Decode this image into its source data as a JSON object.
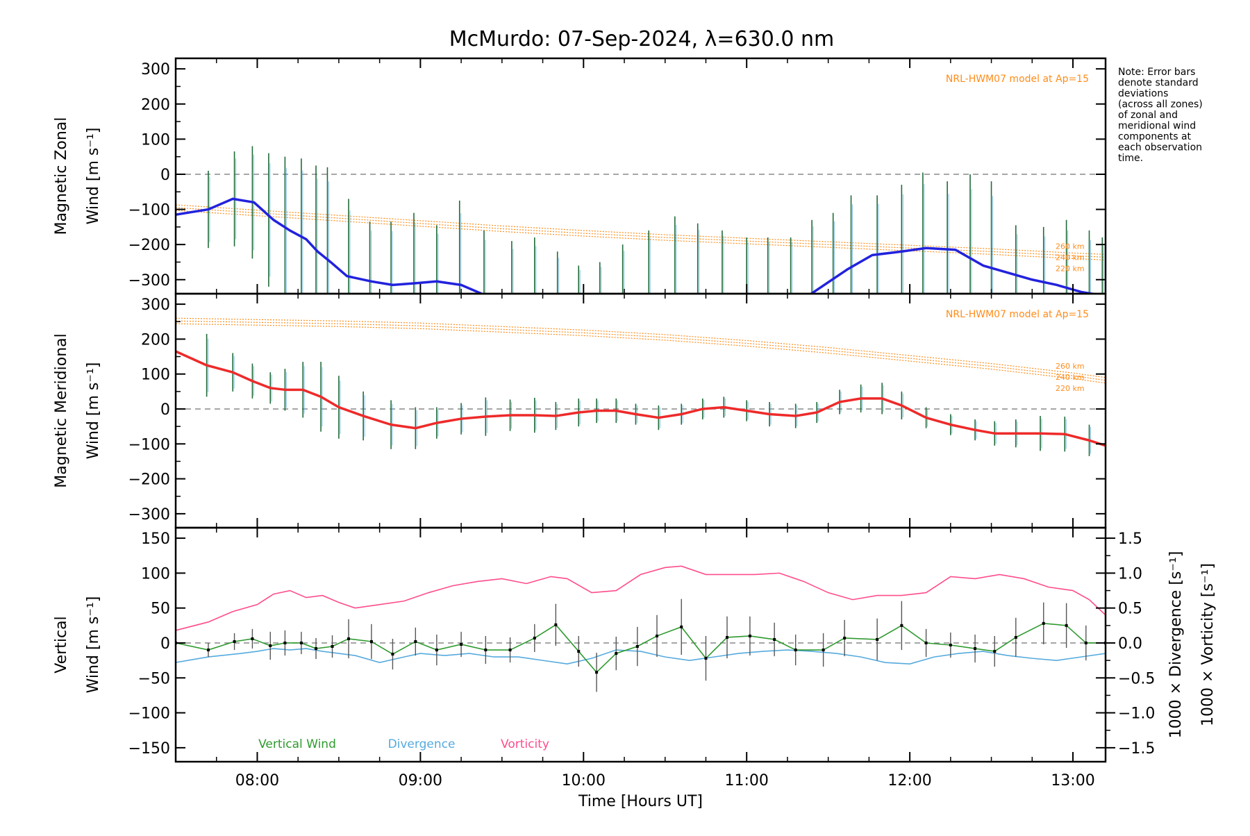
{
  "title": "McMurdo: 07-Sep-2024, λ=630.0 nm",
  "note": [
    "Note: Error bars",
    "denote standard",
    "deviations",
    "(across all zones)",
    "of zonal and",
    "meridional wind",
    "components at",
    "each observation",
    "time."
  ],
  "colors": {
    "zonal": "#2222dd",
    "meridional": "#ee2a2a",
    "model": "#ff8c1a",
    "vertical": "#2e9a2e",
    "divergence": "#55aadd",
    "vorticity": "#ff4c8c",
    "errorbar": "#555555"
  },
  "chart_data": [
    {
      "type": "line",
      "panel": "zonal",
      "ylabel": [
        "Magnetic Zonal",
        "Wind [m s⁻¹]"
      ],
      "xlim": [
        7.5,
        13.2
      ],
      "ylim": [
        -340,
        330
      ],
      "yticks": [
        300,
        200,
        100,
        0,
        -100,
        -200,
        -300
      ],
      "model_label": "NRL-HWM07 model at Ap=15",
      "altitudes": [
        "260 km",
        "240 km",
        "220 km"
      ],
      "series": [
        {
          "values_x": [
            7.5,
            7.7,
            7.85,
            7.98,
            8.1,
            8.2,
            8.3,
            8.37,
            8.45,
            8.55,
            8.7,
            8.83,
            8.97,
            9.1,
            9.25,
            9.4
          ],
          "values_y": [
            -115,
            -100,
            -70,
            -80,
            -130,
            -160,
            -185,
            -220,
            -250,
            -290,
            -305,
            -315,
            -310,
            -305,
            -315,
            -345
          ]
        },
        {
          "values_x": [
            11.38,
            11.62,
            11.77,
            11.95,
            12.1,
            12.28,
            12.45,
            12.6,
            12.75,
            12.9,
            13.05,
            13.18
          ],
          "values_y": [
            -345,
            -270,
            -230,
            -220,
            -210,
            -215,
            -260,
            -280,
            -300,
            -315,
            -335,
            -345
          ]
        }
      ],
      "model": {
        "x": [
          7.5,
          8.0,
          8.5,
          9.0,
          9.5,
          10.0,
          10.5,
          11.0,
          11.5,
          12.0,
          12.5,
          13.0,
          13.2
        ],
        "y": [
          -95,
          -110,
          -125,
          -140,
          -155,
          -168,
          -180,
          -190,
          -200,
          -210,
          -220,
          -232,
          -236
        ]
      },
      "errorbars": {
        "x": [
          7.7,
          7.86,
          7.97,
          8.07,
          8.17,
          8.27,
          8.36,
          8.43,
          8.56,
          8.69,
          8.82,
          8.96,
          9.1,
          9.24,
          9.39,
          9.56,
          9.7,
          9.84,
          9.97,
          10.1,
          10.24,
          10.4,
          10.56,
          10.7,
          10.85,
          11.0,
          11.13,
          11.27,
          11.4,
          11.53,
          11.64,
          11.8,
          11.95,
          12.08,
          12.23,
          12.37,
          12.5,
          12.65,
          12.82,
          12.96,
          13.1,
          13.18
        ],
        "y": [
          -100,
          -70,
          -80,
          -130,
          -160,
          -185,
          -220,
          -250,
          -290,
          -305,
          -315,
          -310,
          -305,
          -315,
          -340,
          -340,
          -340,
          -340,
          -340,
          -340,
          -320,
          -300,
          -280,
          -260,
          -260,
          -270,
          -270,
          -270,
          -250,
          -270,
          -230,
          -220,
          -210,
          -215,
          -260,
          -280,
          -300,
          -315,
          -330,
          -330,
          -340,
          -340
        ],
        "err": [
          110,
          135,
          160,
          190,
          210,
          230,
          245,
          270,
          220,
          170,
          180,
          200,
          160,
          240,
          180,
          150,
          160,
          120,
          80,
          90,
          120,
          140,
          160,
          120,
          100,
          90,
          90,
          90,
          120,
          160,
          170,
          160,
          180,
          220,
          240,
          280,
          280,
          170,
          180,
          200,
          180,
          160
        ]
      }
    },
    {
      "type": "line",
      "panel": "meridional",
      "ylabel": [
        "Magnetic Meridional",
        "Wind [m s⁻¹]"
      ],
      "xlim": [
        7.5,
        13.2
      ],
      "ylim": [
        -340,
        330
      ],
      "yticks": [
        300,
        200,
        100,
        0,
        -100,
        -200,
        -300
      ],
      "model_label": "NRL-HWM07 model at Ap=15",
      "altitudes": [
        "260 km",
        "240 km",
        "220 km"
      ],
      "series": [
        {
          "values_x": [
            7.5,
            7.69,
            7.85,
            7.97,
            8.08,
            8.17,
            8.28,
            8.39,
            8.5,
            8.65,
            8.82,
            8.97,
            9.1,
            9.25,
            9.4,
            9.55,
            9.7,
            9.83,
            9.97,
            10.08,
            10.2,
            10.32,
            10.46,
            10.6,
            10.73,
            10.86,
            11.0,
            11.14,
            11.3,
            11.43,
            11.57,
            11.7,
            11.83,
            11.95,
            12.1,
            12.25,
            12.4,
            12.52,
            12.65,
            12.8,
            12.95,
            13.1,
            13.2
          ],
          "values_y": [
            165,
            125,
            105,
            80,
            60,
            55,
            55,
            35,
            5,
            -20,
            -45,
            -55,
            -40,
            -28,
            -22,
            -18,
            -18,
            -20,
            -10,
            -5,
            -5,
            -15,
            -25,
            -15,
            0,
            5,
            -5,
            -15,
            -20,
            -10,
            20,
            30,
            30,
            10,
            -25,
            -45,
            -60,
            -70,
            -70,
            -70,
            -72,
            -90,
            -105
          ]
        }
      ],
      "model": {
        "x": [
          7.5,
          8.0,
          8.5,
          9.0,
          9.5,
          10.0,
          10.5,
          11.0,
          11.5,
          12.0,
          12.5,
          13.0,
          13.2
        ],
        "y": [
          252,
          248,
          244,
          238,
          228,
          218,
          205,
          188,
          168,
          145,
          122,
          95,
          82
        ]
      },
      "errorbars": {
        "x": [
          7.69,
          7.85,
          7.97,
          8.08,
          8.17,
          8.28,
          8.39,
          8.5,
          8.65,
          8.82,
          8.97,
          9.1,
          9.25,
          9.4,
          9.55,
          9.7,
          9.83,
          9.97,
          10.08,
          10.2,
          10.32,
          10.46,
          10.6,
          10.73,
          10.86,
          11.0,
          11.14,
          11.3,
          11.43,
          11.57,
          11.7,
          11.83,
          11.95,
          12.1,
          12.25,
          12.4,
          12.52,
          12.65,
          12.8,
          12.95,
          13.1
        ],
        "y": [
          125,
          105,
          80,
          60,
          55,
          55,
          35,
          5,
          -20,
          -45,
          -55,
          -40,
          -28,
          -22,
          -18,
          -18,
          -20,
          -10,
          -5,
          -5,
          -15,
          -25,
          -15,
          0,
          5,
          -5,
          -15,
          -20,
          -10,
          20,
          30,
          30,
          10,
          -25,
          -45,
          -60,
          -70,
          -70,
          -70,
          -72,
          -90
        ],
        "err": [
          90,
          55,
          50,
          45,
          60,
          80,
          100,
          90,
          70,
          70,
          60,
          45,
          45,
          55,
          45,
          50,
          40,
          40,
          35,
          35,
          30,
          35,
          30,
          30,
          30,
          30,
          35,
          35,
          30,
          35,
          40,
          45,
          40,
          30,
          30,
          30,
          35,
          40,
          50,
          50,
          45
        ]
      }
    },
    {
      "type": "line",
      "panel": "vertical",
      "ylabel": [
        "Vertical",
        "Wind [m s⁻¹]"
      ],
      "y2label_div": "1000 × Divergence [s⁻¹]",
      "y2label_vort": "1000 × Vorticity [s⁻¹]",
      "xlabel": "Time [Hours UT]",
      "xlim": [
        7.5,
        13.2
      ],
      "ylim": [
        -170,
        165
      ],
      "yticks": [
        150,
        100,
        50,
        0,
        -50,
        -100,
        -150
      ],
      "y2lim": [
        -1.7,
        1.65
      ],
      "y2ticks": [
        "1.5",
        "1.0",
        "0.5",
        "0.0",
        "−0.5",
        "−1.0",
        "−1.5"
      ],
      "y2tick_values": [
        1.5,
        1.0,
        0.5,
        0.0,
        -0.5,
        -1.0,
        -1.5
      ],
      "xticks": [
        "08:00",
        "09:00",
        "10:00",
        "11:00",
        "12:00",
        "13:00"
      ],
      "xtick_values": [
        8,
        9,
        10,
        11,
        12,
        13
      ],
      "legend": [
        "Vertical Wind",
        "Divergence",
        "Vorticity"
      ],
      "vertical": {
        "x": [
          7.5,
          7.7,
          7.86,
          7.97,
          8.08,
          8.17,
          8.27,
          8.36,
          8.46,
          8.56,
          8.7,
          8.83,
          8.97,
          9.1,
          9.25,
          9.4,
          9.55,
          9.7,
          9.83,
          9.97,
          10.08,
          10.2,
          10.33,
          10.45,
          10.6,
          10.75,
          10.88,
          11.02,
          11.17,
          11.3,
          11.47,
          11.6,
          11.8,
          11.95,
          12.1,
          12.25,
          12.4,
          12.52,
          12.65,
          12.82,
          12.96,
          13.08,
          13.2
        ],
        "y": [
          0,
          -10,
          2,
          6,
          -4,
          0,
          0,
          -8,
          -5,
          6,
          2,
          -16,
          2,
          -10,
          -2,
          -10,
          -10,
          7,
          26,
          -12,
          -42,
          -15,
          -5,
          10,
          23,
          -22,
          8,
          10,
          5,
          -10,
          -10,
          7,
          5,
          25,
          0,
          -3,
          -8,
          -12,
          8,
          28,
          25,
          0,
          0
        ],
        "err": [
          0,
          10,
          12,
          14,
          20,
          18,
          16,
          15,
          16,
          28,
          25,
          22,
          20,
          22,
          18,
          20,
          18,
          20,
          30,
          22,
          28,
          24,
          28,
          30,
          40,
          32,
          30,
          28,
          24,
          22,
          24,
          26,
          30,
          35,
          20,
          18,
          20,
          22,
          28,
          30,
          32,
          25,
          0
        ]
      },
      "divergence": {
        "x": [
          7.5,
          7.7,
          7.9,
          8.0,
          8.1,
          8.2,
          8.3,
          8.4,
          8.5,
          8.6,
          8.75,
          8.9,
          9.0,
          9.15,
          9.3,
          9.45,
          9.6,
          9.75,
          9.9,
          10.05,
          10.2,
          10.35,
          10.5,
          10.65,
          10.8,
          10.95,
          11.1,
          11.25,
          11.4,
          11.55,
          11.7,
          11.85,
          12.0,
          12.15,
          12.3,
          12.45,
          12.6,
          12.75,
          12.9,
          13.05,
          13.2
        ],
        "y": [
          -0.28,
          -0.2,
          -0.15,
          -0.12,
          -0.08,
          -0.1,
          -0.08,
          -0.12,
          -0.15,
          -0.18,
          -0.28,
          -0.2,
          -0.15,
          -0.18,
          -0.15,
          -0.2,
          -0.2,
          -0.25,
          -0.3,
          -0.22,
          -0.1,
          -0.12,
          -0.2,
          -0.25,
          -0.2,
          -0.15,
          -0.12,
          -0.1,
          -0.12,
          -0.15,
          -0.2,
          -0.28,
          -0.3,
          -0.2,
          -0.15,
          -0.12,
          -0.18,
          -0.22,
          -0.25,
          -0.2,
          -0.15
        ]
      },
      "vorticity": {
        "x": [
          7.5,
          7.7,
          7.85,
          8.0,
          8.1,
          8.2,
          8.3,
          8.4,
          8.5,
          8.6,
          8.75,
          8.9,
          9.05,
          9.2,
          9.35,
          9.5,
          9.65,
          9.8,
          9.9,
          10.05,
          10.2,
          10.35,
          10.5,
          10.6,
          10.75,
          10.9,
          11.05,
          11.2,
          11.35,
          11.5,
          11.65,
          11.8,
          11.95,
          12.1,
          12.25,
          12.4,
          12.55,
          12.7,
          12.85,
          13.0,
          13.1,
          13.2
        ],
        "y": [
          0.18,
          0.3,
          0.45,
          0.55,
          0.7,
          0.75,
          0.65,
          0.68,
          0.58,
          0.5,
          0.55,
          0.6,
          0.72,
          0.82,
          0.88,
          0.92,
          0.85,
          0.95,
          0.92,
          0.72,
          0.75,
          0.98,
          1.08,
          1.1,
          0.98,
          0.98,
          0.98,
          1.0,
          0.88,
          0.72,
          0.62,
          0.68,
          0.68,
          0.72,
          0.95,
          0.92,
          0.98,
          0.92,
          0.8,
          0.75,
          0.62,
          0.4
        ]
      }
    }
  ]
}
